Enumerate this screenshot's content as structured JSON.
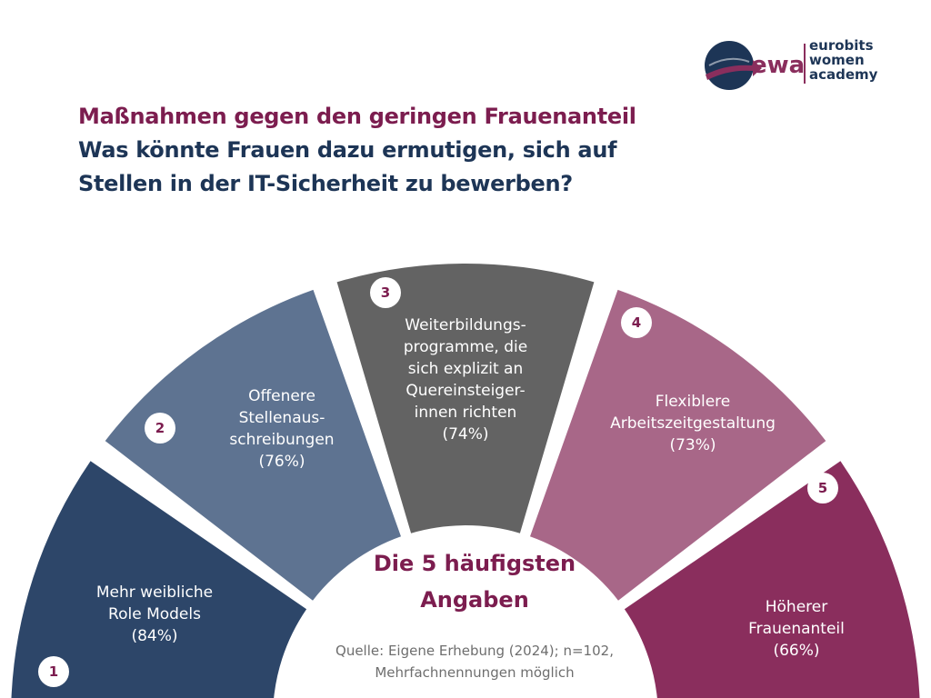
{
  "logo": {
    "mark": "ewa",
    "lines": [
      "eurobits",
      "women",
      "academy"
    ]
  },
  "header": {
    "title": "Maßnahmen gegen den geringen Frauenanteil",
    "question_line1": "Was könnte Frauen dazu ermutigen, sich auf",
    "question_line2": "Stellen in der IT-Sicherheit zu bewerben?"
  },
  "center": {
    "title_line1": "Die 5 häufigsten",
    "title_line2": "Angaben",
    "source_line1": "Quelle: Eigene Erhebung (2024); n=102,",
    "source_line2": "Mehrfachnennungen möglich"
  },
  "segments": [
    {
      "rank": "1",
      "lines": [
        "Mehr weibliche",
        "Role Models",
        "(84%)"
      ],
      "percent": 84,
      "color": "#2d4669"
    },
    {
      "rank": "2",
      "lines": [
        "Offenere",
        "Stellenaus-",
        "schreibungen",
        "(76%)"
      ],
      "percent": 76,
      "color": "#5e7391"
    },
    {
      "rank": "3",
      "lines": [
        "Weiterbildungs-",
        "programme, die",
        "sich explizit an",
        "Quereinsteiger-",
        "innen richten",
        "(74%)"
      ],
      "percent": 74,
      "color": "#636363"
    },
    {
      "rank": "4",
      "lines": [
        "Flexiblere",
        "Arbeitszeitgestaltung",
        "(73%)"
      ],
      "percent": 73,
      "color": "#a86788"
    },
    {
      "rank": "5",
      "lines": [
        "Höherer",
        "Frauenanteil",
        "(66%)"
      ],
      "percent": 66,
      "color": "#8a2e5d"
    }
  ]
}
